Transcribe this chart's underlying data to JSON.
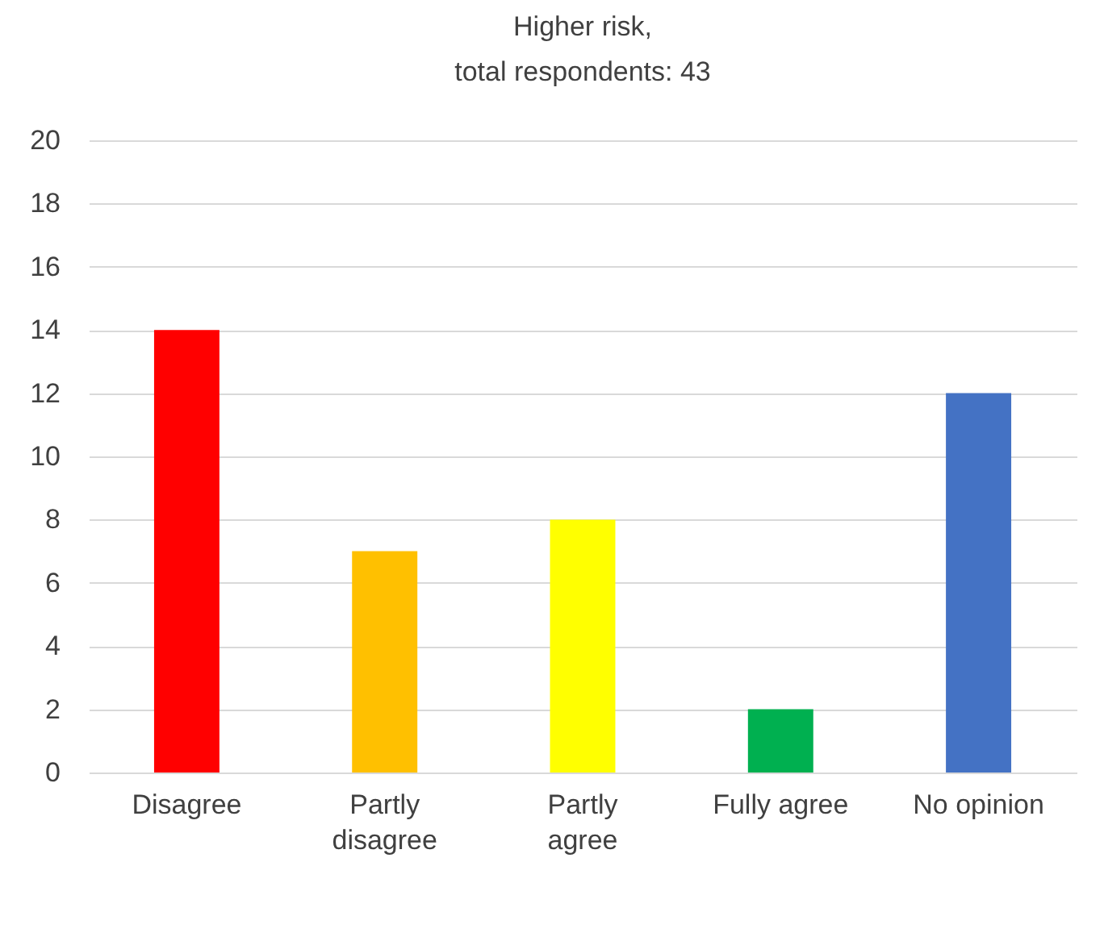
{
  "chart_data": {
    "type": "bar",
    "title": "Higher risk,\ntotal respondents: 43",
    "categories": [
      "Disagree",
      "Partly disagree",
      "Partly agree",
      "Fully agree",
      "No opinion"
    ],
    "values": [
      14,
      7,
      8,
      2,
      12
    ],
    "colors": [
      "#ff0000",
      "#ffc000",
      "#ffff00",
      "#00b050",
      "#4472c4"
    ],
    "ylim": [
      0,
      20
    ],
    "yticks": [
      0,
      2,
      4,
      6,
      8,
      10,
      12,
      14,
      16,
      18,
      20
    ],
    "grid": "y",
    "legend": false
  }
}
